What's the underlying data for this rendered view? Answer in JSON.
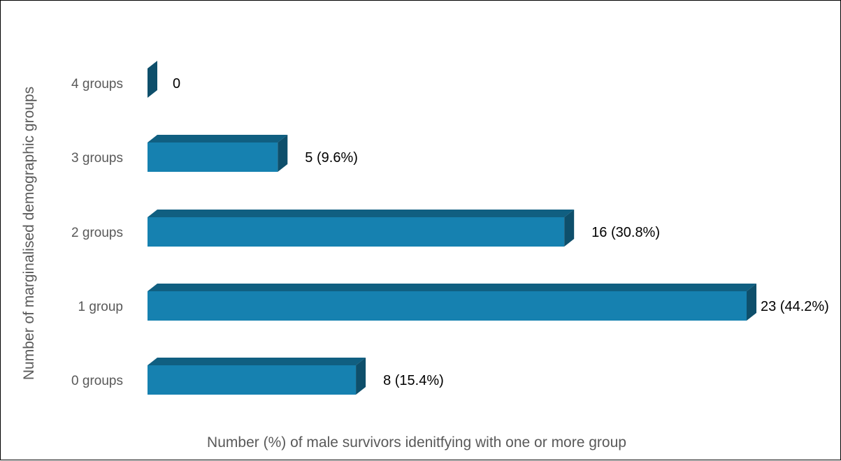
{
  "chart_data": {
    "type": "bar",
    "orientation": "horizontal",
    "style": "3d",
    "categories": [
      "0 groups",
      "1 group",
      "2 groups",
      "3 groups",
      "4 groups"
    ],
    "values": [
      8,
      23,
      16,
      5,
      0
    ],
    "data_labels": [
      "8 (15.4%)",
      "23 (44.2%)",
      "16 (30.8%)",
      "5 (9.6%)",
      "0"
    ],
    "xlabel": "Number (%) of male survivors idenitfying with one or more group",
    "ylabel": "Number of marginalised demographic groups",
    "xlim": [
      0,
      23
    ],
    "grid": false,
    "legend": "none",
    "colors": {
      "front": "#1681B0",
      "top": "#105F81",
      "side": "#0E4F6B"
    }
  }
}
